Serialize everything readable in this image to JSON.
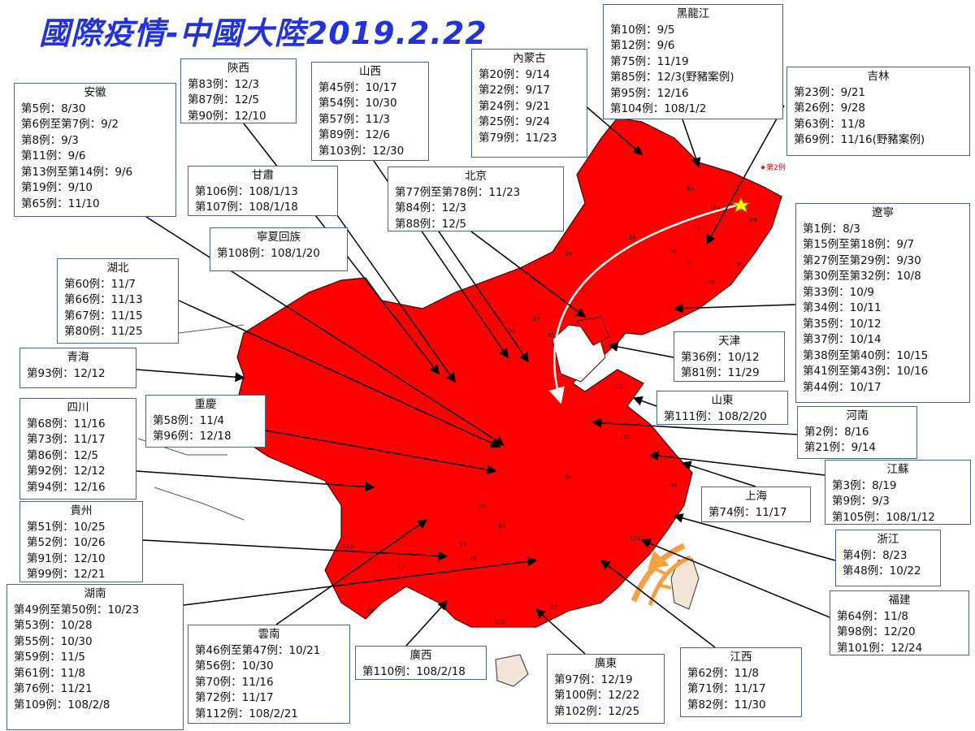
{
  "title": "國際疫情-中國大陸2019.2.22",
  "star_note": "★第2例",
  "map_labels": [
    "85",
    "108",
    "75",
    "26",
    "33",
    "63",
    "69",
    "99",
    "34",
    "20",
    "22",
    "29",
    "25",
    "45",
    "111",
    "105",
    "60",
    "46",
    "101",
    "97",
    "110",
    "56",
    "72",
    "112",
    "91",
    "81",
    "76",
    "55"
  ],
  "boxes": [
    {
      "title": "安徽",
      "lines": [
        "第5例：8/30",
        "第6例至第7例：9/2",
        "第8例：9/3",
        "第11例：9/6",
        "第13例至第14例：9/6",
        "第19例：9/10",
        "第65例：11/10"
      ]
    },
    {
      "title": "陝西",
      "lines": [
        "第83例：12/3",
        "第87例：12/5",
        "第90例：12/10"
      ]
    },
    {
      "title": "山西",
      "lines": [
        "第45例：10/17",
        "第54例：10/30",
        "第57例：11/3",
        "第89例：12/6",
        "第103例：12/30"
      ]
    },
    {
      "title": "內蒙古",
      "lines": [
        "第20例：9/14",
        "第22例：9/17",
        "第24例：9/21",
        "第25例：9/24",
        "第79例：11/23"
      ]
    },
    {
      "title": "黑龍江",
      "lines": [
        "第10例：9/5",
        "第12例：9/6",
        "第75例：11/19",
        "第85例：12/3(野豬案例)",
        "第95例：12/16",
        "第104例：108/1/2"
      ]
    },
    {
      "title": "吉林",
      "lines": [
        "第23例：9/21",
        "第26例：9/28",
        "第63例：11/8",
        "第69例：11/16(野豬案例)"
      ]
    },
    {
      "title": "甘肅",
      "lines": [
        "第106例：108/1/13",
        "第107例：108/1/18"
      ]
    },
    {
      "title": "北京",
      "lines": [
        "第77例至第78例：11/23",
        "第84例：12/3",
        "第88例：12/5"
      ]
    },
    {
      "title": "寧夏回族",
      "lines": [
        "第108例：108/1/20"
      ]
    },
    {
      "title": "遼寧",
      "lines": [
        "第1例：8/3",
        "第15例至第18例：9/7",
        "第27例至第29例：9/30",
        "第30例至第32例：10/8",
        "第33例：10/9",
        "第34例：10/11",
        "第35例：10/12",
        "第37例：10/14",
        "第38例至第40例：10/15",
        "第41例至第43例：10/16",
        "第44例：10/17"
      ]
    },
    {
      "title": "湖北",
      "lines": [
        "第60例：11/7",
        "第66例：11/13",
        "第67例：11/15",
        "第80例：11/25"
      ]
    },
    {
      "title": "天津",
      "lines": [
        "第36例：10/12",
        "第81例：11/29"
      ]
    },
    {
      "title": "青海",
      "lines": [
        "第93例：12/12"
      ]
    },
    {
      "title": "山東",
      "lines": [
        "第111例：108/2/20"
      ]
    },
    {
      "title": "四川",
      "lines": [
        "第68例：11/16",
        "第73例：11/17",
        "第86例：12/5",
        "第92例：12/12",
        "第94例：12/16"
      ]
    },
    {
      "title": "重慶",
      "lines": [
        "第58例：11/4",
        "第96例：12/18"
      ]
    },
    {
      "title": "河南",
      "lines": [
        "第2例：8/16",
        "第21例：9/14"
      ]
    },
    {
      "title": "江蘇",
      "lines": [
        "第3例：8/19",
        "第9例：9/3",
        "第105例：108/1/12"
      ]
    },
    {
      "title": "上海",
      "lines": [
        "第74例：11/17"
      ]
    },
    {
      "title": "貴州",
      "lines": [
        "第51例：10/25",
        "第52例：10/26",
        "第91例：12/10",
        "第99例：12/21"
      ]
    },
    {
      "title": "浙江",
      "lines": [
        "第4例：8/23",
        "第48例：10/22"
      ]
    },
    {
      "title": "湖南",
      "lines": [
        "第49例至第50例：10/23",
        "第53例：10/28",
        "第55例：10/30",
        "第59例：11/5",
        "第61例：11/8",
        "第76例：11/21",
        "第109例：108/2/8"
      ]
    },
    {
      "title": "福建",
      "lines": [
        "第64例：11/8",
        "第98例：12/20",
        "第101例：12/24"
      ]
    },
    {
      "title": "雲南",
      "lines": [
        "第46例至第47例：10/21",
        "第56例：10/30",
        "第70例：11/16",
        "第72例：11/17",
        "第112例：108/2/21"
      ]
    },
    {
      "title": "廣西",
      "lines": [
        "第110例：108/2/18"
      ]
    },
    {
      "title": "廣東",
      "lines": [
        "第97例：12/19",
        "第100例：12/22",
        "第102例：12/25"
      ]
    },
    {
      "title": "江西",
      "lines": [
        "第62例：11/8",
        "第71例：11/17",
        "第82例：11/30"
      ]
    }
  ]
}
